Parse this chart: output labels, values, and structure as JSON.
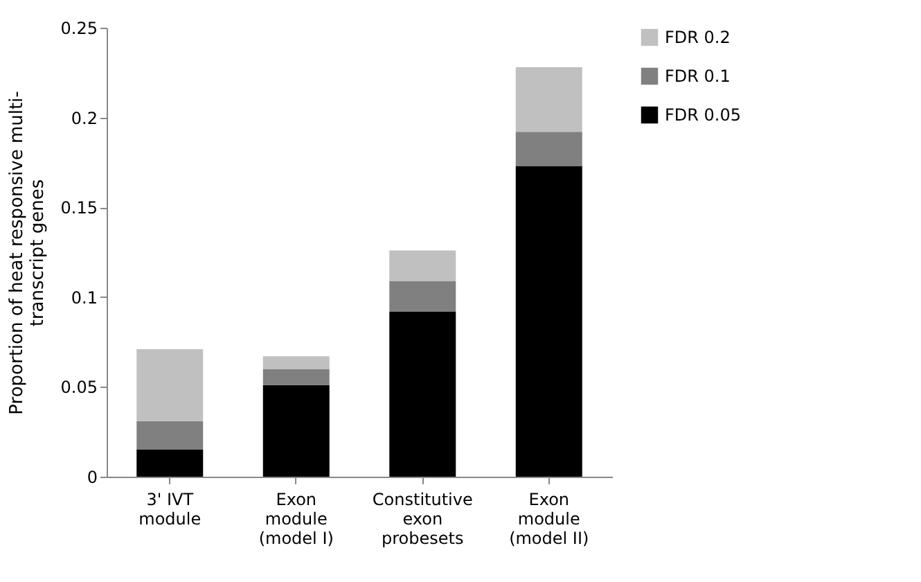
{
  "chart_data": {
    "type": "bar",
    "stacked": true,
    "ylabel": "Proportion of heat responsive multi-\ntranscript genes",
    "categories": [
      "3' IVT\nmodule",
      "Exon\nmodule\n(model I)",
      "Constitutive\nexon\nprobesets",
      "Exon\nmodule\n(model II)"
    ],
    "series": [
      {
        "name": "FDR 0.05",
        "color": "#000000",
        "values": [
          0.015,
          0.051,
          0.092,
          0.173
        ]
      },
      {
        "name": "FDR 0.1",
        "color": "#808080",
        "values": [
          0.016,
          0.009,
          0.017,
          0.019
        ]
      },
      {
        "name": "FDR 0.2",
        "color": "#c0c0c0",
        "values": [
          0.04,
          0.007,
          0.017,
          0.036
        ]
      }
    ],
    "ylim": [
      0,
      0.25
    ],
    "yticks": [
      0,
      0.05,
      0.1,
      0.15,
      0.2,
      0.25
    ],
    "grid": false,
    "legend": "right"
  }
}
